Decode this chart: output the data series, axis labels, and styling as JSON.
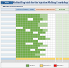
{
  "title": "Figure 12 - Multiskilling table for the Injection Molding 4 workshop",
  "header_title": "Tableau de polyvalence",
  "bg_color": "#ffffff",
  "cell_colors": {
    "dark_green": "#375623",
    "green": "#70ad47",
    "light_green": "#a9d18e",
    "yellow": "#ffd966",
    "white": "#ffffff",
    "light_blue": "#deeaf1",
    "blue_header": "#2e75b6",
    "gray": "#d9d9d9"
  },
  "num_rows": 22,
  "num_cols": 20,
  "legend_green": "#70ad47",
  "legend_yellow": "#ffd966",
  "legend_red": "#ff0000"
}
